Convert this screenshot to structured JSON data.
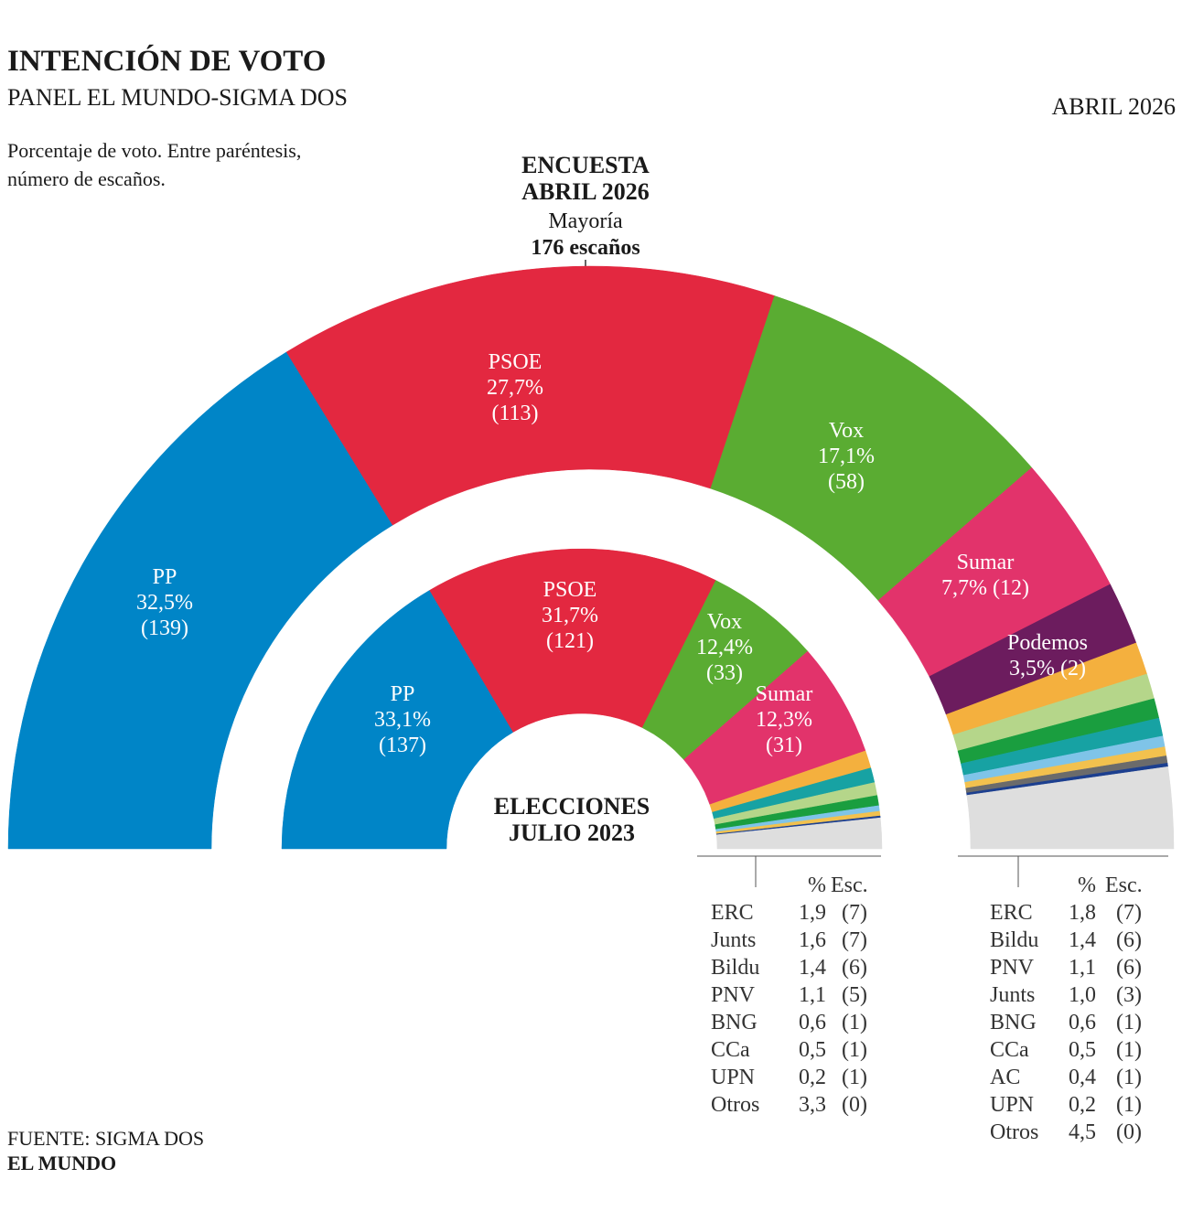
{
  "header": {
    "title": "INTENCIÓN DE VOTO",
    "subtitle": "PANEL EL MUNDO-SIGMA DOS",
    "date": "ABRIL 2026",
    "note": [
      "Porcentaje de voto. Entre paréntesis,",
      "número de escaños."
    ]
  },
  "chart_data": [
    {
      "type": "semicircle",
      "title": [
        "ENCUESTA",
        "ABRIL 2026"
      ],
      "annotation": [
        "Mayoría",
        "176 escaños"
      ],
      "categories": [
        "PP",
        "PSOE",
        "Vox",
        "Sumar",
        "Podemos",
        "ERC",
        "Bildu",
        "PNV",
        "Junts",
        "BNG",
        "CCa",
        "AC",
        "UPN",
        "Otros"
      ],
      "colors": [
        "#0085c7",
        "#e32840",
        "#5aac32",
        "#e2336b",
        "#6c1c5e",
        "#f4b03e",
        "#b5d68a",
        "#1a9e3f",
        "#17a2a3",
        "#7fc4e8",
        "#f2c14e",
        "#6b6b6b",
        "#1c3f8f",
        "#dedede"
      ],
      "series": [
        {
          "name": "%",
          "values": [
            32.5,
            27.7,
            17.1,
            7.7,
            3.5,
            1.8,
            1.4,
            1.1,
            1.0,
            0.6,
            0.5,
            0.4,
            0.2,
            4.5
          ],
          "value_labels": [
            "32,5%",
            "27,7%",
            "17,1%",
            "7,7%",
            "3,5%",
            "1,8",
            "1,4",
            "1,1",
            "1,0",
            "0,6",
            "0,5",
            "0,4",
            "0,2",
            "4,5"
          ]
        },
        {
          "name": "Esc.",
          "values": [
            139,
            113,
            58,
            12,
            2,
            7,
            6,
            6,
            3,
            1,
            1,
            1,
            1,
            0
          ],
          "value_labels": [
            "(139)",
            "(113)",
            "(58)",
            "(12)",
            "(2)",
            "(7)",
            "(6)",
            "(6)",
            "(3)",
            "(1)",
            "(1)",
            "(1)",
            "(1)",
            "(0)"
          ]
        }
      ]
    },
    {
      "type": "semicircle",
      "title": [
        "ELECCIONES",
        "JULIO 2023"
      ],
      "categories": [
        "PP",
        "PSOE",
        "Vox",
        "Sumar",
        "ERC",
        "Junts",
        "Bildu",
        "PNV",
        "BNG",
        "CCa",
        "UPN",
        "Otros"
      ],
      "colors": [
        "#0085c7",
        "#e32840",
        "#5aac32",
        "#e2336b",
        "#f4b03e",
        "#17a2a3",
        "#b5d68a",
        "#1a9e3f",
        "#7fc4e8",
        "#f2c14e",
        "#1c3f8f",
        "#dedede"
      ],
      "series": [
        {
          "name": "%",
          "values": [
            33.1,
            31.7,
            12.4,
            12.3,
            1.9,
            1.6,
            1.4,
            1.1,
            0.6,
            0.5,
            0.2,
            3.3
          ],
          "value_labels": [
            "33,1%",
            "31,7%",
            "12,4%",
            "12,3%",
            "1,9",
            "1,6",
            "1,4",
            "1,1",
            "0,6",
            "0,5",
            "0,2",
            "3,3"
          ]
        },
        {
          "name": "Esc.",
          "values": [
            137,
            121,
            33,
            31,
            7,
            7,
            6,
            5,
            1,
            1,
            1,
            0
          ],
          "value_labels": [
            "(137)",
            "(121)",
            "(33)",
            "(31)",
            "(7)",
            "(7)",
            "(6)",
            "(5)",
            "(1)",
            "(1)",
            "(1)",
            "(0)"
          ]
        }
      ]
    }
  ],
  "footer": {
    "source": "FUENTE: SIGMA DOS",
    "brand": "EL MUNDO"
  }
}
